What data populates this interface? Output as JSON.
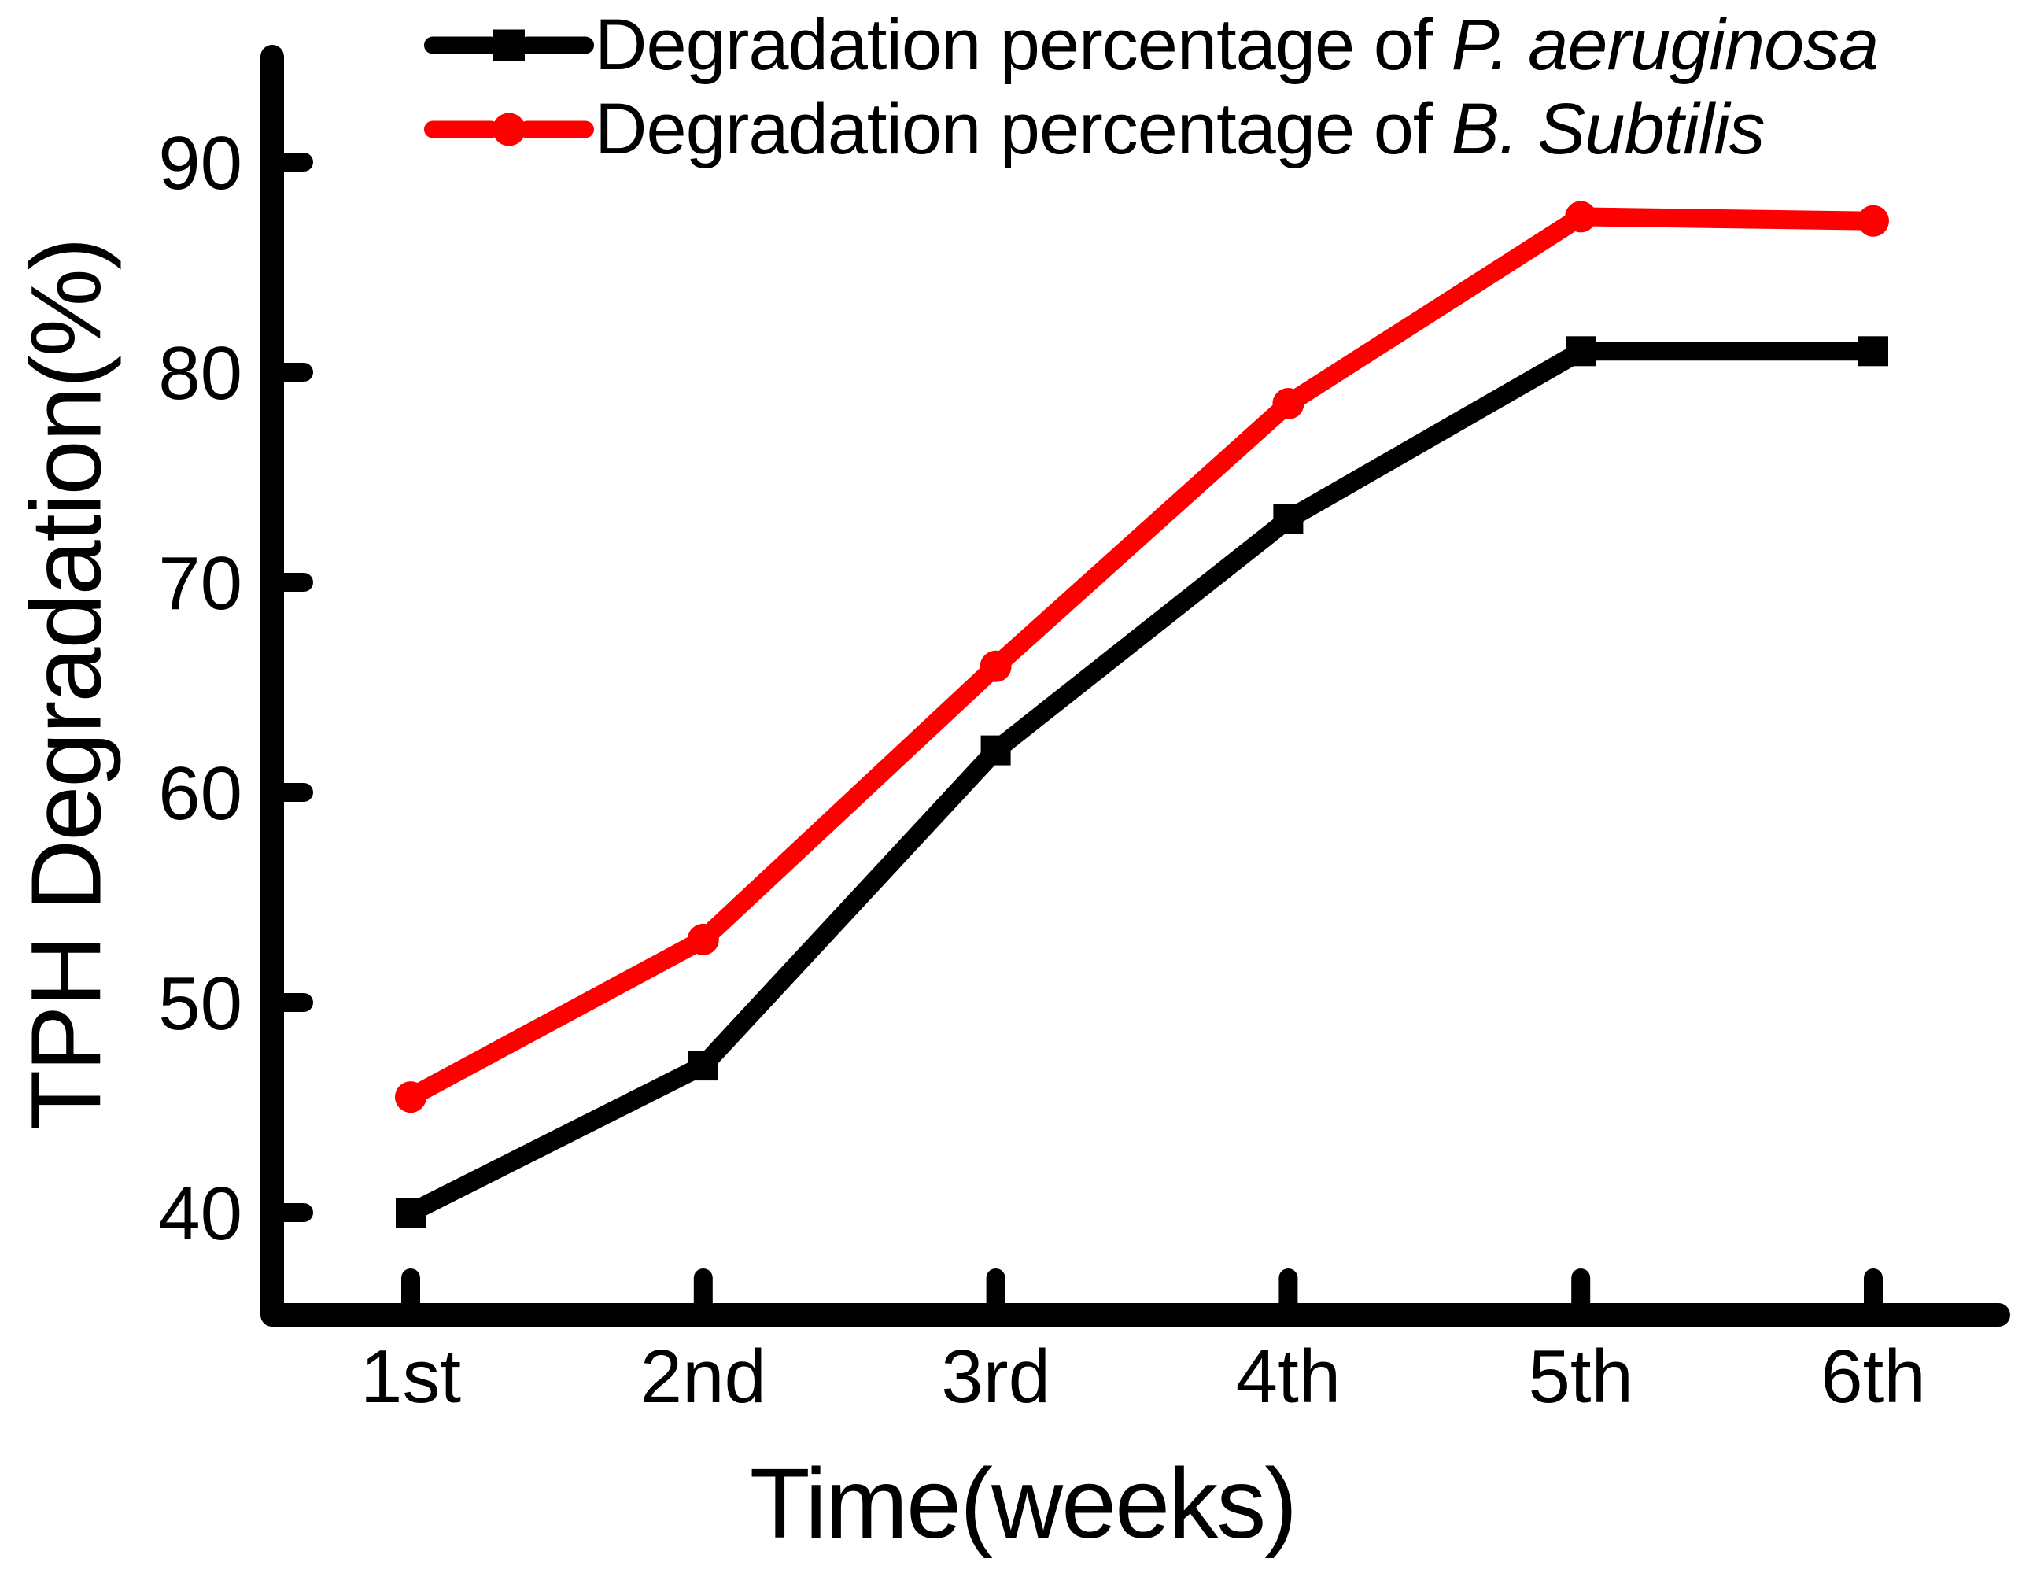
{
  "chart_data": {
    "type": "line",
    "title": "",
    "xlabel": "Time(weeks)",
    "ylabel": "TPH Degradation(%)",
    "categories": [
      "1st",
      "2nd",
      "3rd",
      "4th",
      "5th",
      "6th"
    ],
    "yticks": [
      40,
      50,
      60,
      70,
      80,
      90
    ],
    "ylim": [
      35,
      94.5
    ],
    "xlim": [
      0.5,
      6.45
    ],
    "grid": false,
    "legend_position": "top-left-inside",
    "background_color": "#ffffff",
    "axis_color": "#000000",
    "series": [
      {
        "name": "Degradation percentage of P. aeruginosa",
        "legend_prefix": "Degradation percentage of",
        "legend_species": "P. aeruginosa",
        "color": "#000000",
        "marker": "square",
        "values": [
          40,
          47,
          62,
          73,
          81,
          81
        ]
      },
      {
        "name": "Degradation percentage of B. Subtilis",
        "legend_prefix": "Degradation percentage of",
        "legend_species": "B. Subtilis",
        "color": "#ff0000",
        "marker": "circle",
        "values": [
          45.5,
          53,
          66,
          78.5,
          87.4,
          87.2
        ]
      }
    ]
  }
}
